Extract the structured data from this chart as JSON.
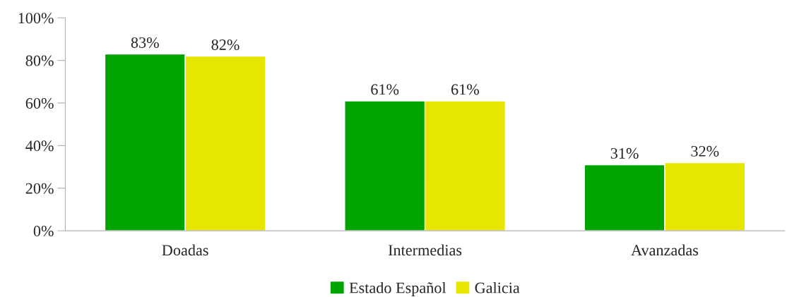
{
  "chart_data": {
    "type": "bar",
    "categories": [
      "Doadas",
      "Intermedias",
      "Avanzadas"
    ],
    "series": [
      {
        "name": "Estado Español",
        "color": "#00a400",
        "values": [
          83,
          61,
          31
        ],
        "value_labels": [
          "83%",
          "61%",
          "31%"
        ]
      },
      {
        "name": "Galicia",
        "color": "#e6e600",
        "values": [
          82,
          61,
          32
        ],
        "value_labels": [
          "82%",
          "61%",
          "32%"
        ]
      }
    ],
    "ylim": [
      0,
      100
    ],
    "yticks": [
      {
        "value": 0,
        "label": "0%"
      },
      {
        "value": 20,
        "label": "20%"
      },
      {
        "value": 40,
        "label": "40%"
      },
      {
        "value": 60,
        "label": "60%"
      },
      {
        "value": 80,
        "label": "80%"
      },
      {
        "value": 100,
        "label": "100%"
      }
    ],
    "grid": false,
    "legend": "bottom"
  }
}
